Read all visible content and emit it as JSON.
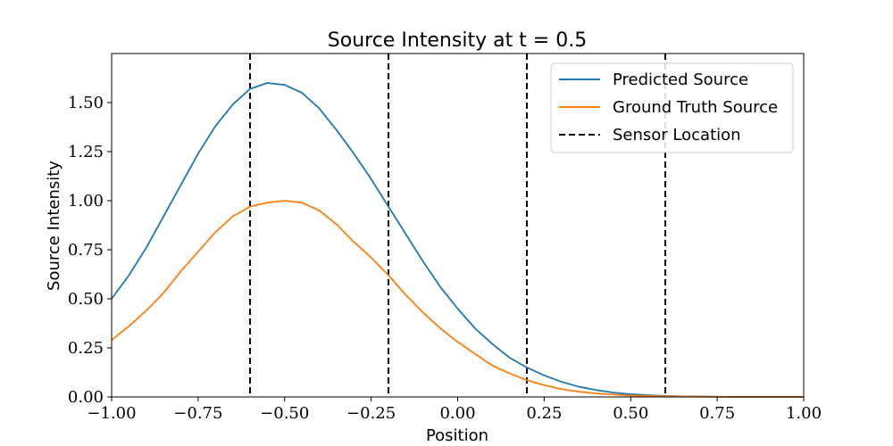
{
  "chart_data": {
    "type": "line",
    "title": "Source Intensity at t = 0.5",
    "xlabel": "Position",
    "ylabel": "Source Intensity",
    "xlim": [
      -1.0,
      1.0
    ],
    "ylim": [
      0.0,
      1.75
    ],
    "x_ticks": [
      -1.0,
      -0.75,
      -0.5,
      -0.25,
      0.0,
      0.25,
      0.5,
      0.75,
      1.0
    ],
    "x_tick_labels": [
      "−1.00",
      "−0.75",
      "−0.50",
      "−0.25",
      "0.00",
      "0.25",
      "0.50",
      "0.75",
      "1.00"
    ],
    "y_ticks": [
      0.0,
      0.25,
      0.5,
      0.75,
      1.0,
      1.25,
      1.5
    ],
    "y_tick_labels": [
      "0.00",
      "0.25",
      "0.50",
      "0.75",
      "1.00",
      "1.25",
      "1.50"
    ],
    "grid": false,
    "legend_position": "top-right",
    "series": [
      {
        "name": "Predicted Source",
        "color": "#1f77b4",
        "style": "solid",
        "x": [
          -1.0,
          -0.95,
          -0.9,
          -0.85,
          -0.8,
          -0.75,
          -0.7,
          -0.65,
          -0.6,
          -0.55,
          -0.5,
          -0.45,
          -0.4,
          -0.35,
          -0.3,
          -0.25,
          -0.2,
          -0.15,
          -0.1,
          -0.05,
          0.0,
          0.05,
          0.1,
          0.15,
          0.2,
          0.25,
          0.3,
          0.35,
          0.4,
          0.45,
          0.5,
          0.55,
          0.6,
          0.65,
          0.7,
          0.75,
          0.8,
          0.85,
          0.9,
          0.95,
          1.0
        ],
        "values": [
          0.5,
          0.62,
          0.76,
          0.92,
          1.08,
          1.24,
          1.38,
          1.49,
          1.57,
          1.6,
          1.59,
          1.55,
          1.47,
          1.36,
          1.24,
          1.11,
          0.97,
          0.83,
          0.69,
          0.56,
          0.45,
          0.35,
          0.27,
          0.2,
          0.15,
          0.11,
          0.077,
          0.052,
          0.035,
          0.022,
          0.014,
          0.009,
          0.005,
          0.003,
          0.002,
          0.001,
          0.0,
          0.0,
          0.0,
          0.0,
          0.0
        ]
      },
      {
        "name": "Ground Truth Source",
        "color": "#ff7f0e",
        "style": "solid",
        "x": [
          -1.0,
          -0.95,
          -0.9,
          -0.85,
          -0.8,
          -0.75,
          -0.7,
          -0.65,
          -0.6,
          -0.55,
          -0.5,
          -0.45,
          -0.4,
          -0.35,
          -0.3,
          -0.25,
          -0.2,
          -0.15,
          -0.1,
          -0.05,
          0.0,
          0.05,
          0.1,
          0.15,
          0.2,
          0.25,
          0.3,
          0.35,
          0.4,
          0.45,
          0.5,
          0.55,
          0.6,
          0.65,
          0.7,
          0.75,
          0.8,
          0.85,
          0.9,
          0.95,
          1.0
        ],
        "values": [
          0.29,
          0.36,
          0.44,
          0.53,
          0.64,
          0.74,
          0.84,
          0.92,
          0.97,
          0.99,
          1.0,
          0.99,
          0.95,
          0.88,
          0.79,
          0.71,
          0.62,
          0.52,
          0.43,
          0.35,
          0.28,
          0.22,
          0.16,
          0.12,
          0.085,
          0.06,
          0.04,
          0.027,
          0.018,
          0.012,
          0.007,
          0.005,
          0.003,
          0.002,
          0.001,
          0.001,
          0.0,
          0.0,
          0.0,
          0.0,
          0.0
        ]
      }
    ],
    "sensor_series": {
      "name": "Sensor Location",
      "color": "#000000",
      "style": "dashed",
      "positions": [
        -0.6,
        -0.2,
        0.2,
        0.6
      ]
    }
  }
}
